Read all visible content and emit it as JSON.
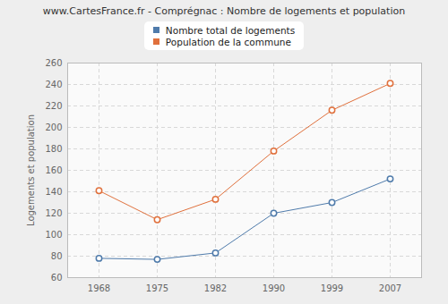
{
  "chart_data": {
    "type": "line",
    "title": "www.CartesFrance.fr - Comprégnac : Nombre de logements et population",
    "y_label": "Logements et population",
    "categories": [
      "1968",
      "1975",
      "1982",
      "1990",
      "1999",
      "2007"
    ],
    "series": [
      {
        "name": "Nombre total de logements",
        "color": "#4f7bab",
        "marker": "circle",
        "values": [
          78,
          77,
          83,
          120,
          130,
          152
        ]
      },
      {
        "name": "Population de la commune",
        "color": "#e0703c",
        "marker": "circle",
        "values": [
          141,
          114,
          133,
          178,
          216,
          241
        ]
      }
    ],
    "ylim": [
      60,
      260
    ],
    "yticks": [
      60,
      80,
      100,
      120,
      140,
      160,
      180,
      200,
      220,
      240,
      260
    ],
    "grid": true,
    "legend": "top"
  }
}
